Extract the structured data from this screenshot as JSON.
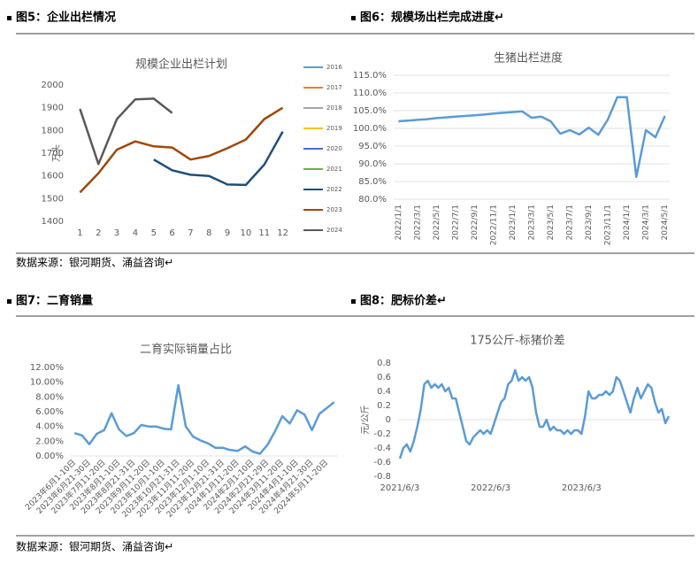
{
  "sources": [
    "数据来源：银河期货、涌益咨询↵",
    "数据来源：银河期货、涌益咨询↵"
  ],
  "chart_data": [
    {
      "type": "line",
      "caption": "图5：企业出栏情况",
      "title": "规模企业出栏计划",
      "ylabel": "万头",
      "categories": [
        "1",
        "2",
        "3",
        "4",
        "5",
        "6",
        "7",
        "8",
        "9",
        "10",
        "11",
        "12"
      ],
      "ylim": [
        1400,
        2000
      ],
      "yticks": [
        1400,
        1500,
        1600,
        1700,
        1800,
        1900,
        2000
      ],
      "grid": false,
      "legend": "right",
      "series": [
        {
          "name": "2016",
          "color": "#5b9bd5",
          "values": [
            null,
            null,
            null,
            null,
            null,
            null,
            null,
            null,
            null,
            null,
            null,
            null
          ]
        },
        {
          "name": "2017",
          "color": "#ed7d31",
          "values": [
            null,
            null,
            null,
            null,
            null,
            null,
            null,
            null,
            null,
            null,
            null,
            null
          ]
        },
        {
          "name": "2018",
          "color": "#a5a5a5",
          "values": [
            null,
            null,
            null,
            null,
            null,
            null,
            null,
            null,
            null,
            null,
            null,
            null
          ]
        },
        {
          "name": "2019",
          "color": "#ffc000",
          "values": [
            null,
            null,
            null,
            null,
            null,
            null,
            null,
            null,
            null,
            null,
            null,
            null
          ]
        },
        {
          "name": "2020",
          "color": "#4472c4",
          "values": [
            null,
            null,
            null,
            null,
            null,
            null,
            null,
            null,
            null,
            null,
            null,
            null
          ]
        },
        {
          "name": "2021",
          "color": "#70ad47",
          "values": [
            null,
            null,
            null,
            null,
            null,
            null,
            null,
            null,
            null,
            null,
            null,
            null
          ]
        },
        {
          "name": "2022",
          "color": "#1f4e79",
          "values": [
            null,
            null,
            null,
            null,
            1672,
            1625,
            1605,
            1600,
            1562,
            1560,
            1650,
            1795
          ]
        },
        {
          "name": "2023",
          "color": "#9e480e",
          "values": [
            1527,
            1612,
            1715,
            1752,
            1730,
            1725,
            1672,
            1688,
            1722,
            1760,
            1850,
            1900
          ]
        },
        {
          "name": "2024",
          "color": "#595959",
          "values": [
            1895,
            1652,
            1850,
            1937,
            1940,
            1877,
            null,
            null,
            null,
            null,
            null,
            null
          ]
        }
      ]
    },
    {
      "type": "line",
      "caption": "图6：规模场出栏完成进度↵",
      "title": "生猪出栏进度",
      "categories": [
        "2022/1/1",
        null,
        "2022/3/1",
        null,
        "2022/5/1",
        null,
        "2022/7/1",
        null,
        "2022/9/1",
        null,
        "2022/11/1",
        null,
        "2023/1/1",
        null,
        "2023/3/1",
        null,
        "2023/5/1",
        null,
        "2023/7/1",
        null,
        "2023/9/1",
        null,
        "2023/11/1",
        null,
        "2024/1/1",
        null,
        "2024/3/1",
        null,
        "2024/5/1"
      ],
      "ylim": [
        80,
        115
      ],
      "yticks": [
        {
          "value": 80,
          "label": "80.0%"
        },
        {
          "value": 85,
          "label": "85.0%"
        },
        {
          "value": 90,
          "label": "90.0%"
        },
        {
          "value": 95,
          "label": "95.0%"
        },
        {
          "value": 100,
          "label": "100.0%"
        },
        {
          "value": 105,
          "label": "105.0%"
        },
        {
          "value": 110,
          "label": "110.0%"
        },
        {
          "value": 115,
          "label": "115.0%"
        }
      ],
      "grid": true,
      "xrotate": -90,
      "series": [
        {
          "name": null,
          "color": "#5b9bd5",
          "values": [
            102.0,
            102.2,
            102.4,
            102.6,
            102.9,
            103.1,
            103.3,
            103.5,
            103.7,
            103.9,
            104.2,
            104.4,
            104.6,
            104.8,
            103.0,
            103.3,
            102.0,
            98.5,
            99.5,
            98.3,
            100.2,
            98.2,
            102.5,
            108.8,
            108.8,
            86.3,
            99.5,
            97.5,
            103.5
          ]
        }
      ]
    },
    {
      "type": "line",
      "caption": "图7：二育销量",
      "title": "二育实际销量占比",
      "categories": [
        "2023年6月1-10日",
        null,
        "2023年6月21-30日",
        null,
        "2023年7月11-20日",
        null,
        "2023年8月1-10日",
        null,
        "2023年8月21-31日",
        null,
        "2023年9月11-20日",
        null,
        "2023年10月1-10日",
        null,
        "2023年10月21-31日",
        null,
        "2023年11月11-20日",
        null,
        "2023年12月1-10日",
        null,
        "2023年12月21-31日",
        null,
        "2024年1月11-20日",
        null,
        "2024年2月1-10日",
        null,
        "2024年2月21-29日",
        null,
        "2024年3月11-20日",
        null,
        "2024年4月1-10日",
        null,
        "2024年4月21-30日",
        null,
        "2024年5月11-20日",
        null
      ],
      "ylim": [
        0,
        12
      ],
      "yticks": [
        {
          "value": 0,
          "label": "0.00%"
        },
        {
          "value": 2,
          "label": "2.00%"
        },
        {
          "value": 4,
          "label": "4.00%"
        },
        {
          "value": 6,
          "label": "6.00%"
        },
        {
          "value": 8,
          "label": "8.00%"
        },
        {
          "value": 10,
          "label": "10.00%"
        },
        {
          "value": 12,
          "label": "12.00%"
        }
      ],
      "grid": false,
      "xrotate": -45,
      "series": [
        {
          "name": null,
          "color": "#5b9bd5",
          "values": [
            3.1,
            2.8,
            1.6,
            3.0,
            3.5,
            5.8,
            3.6,
            2.7,
            3.1,
            4.2,
            4.0,
            4.0,
            3.7,
            3.6,
            9.6,
            4.0,
            2.6,
            2.1,
            1.7,
            1.1,
            1.1,
            0.8,
            0.7,
            1.3,
            0.6,
            0.3,
            1.5,
            3.3,
            5.4,
            4.4,
            6.2,
            5.6,
            3.5,
            5.7,
            6.5,
            7.3
          ]
        }
      ]
    },
    {
      "type": "line",
      "caption": "图8：肥标价差↵",
      "title": "175公斤-标猪价差",
      "ylabel": "元/公斤",
      "categories": [
        "2021/6/3",
        null,
        null,
        null,
        null,
        null,
        null,
        null,
        null,
        null,
        null,
        null,
        null,
        null,
        null,
        null,
        null,
        null,
        null,
        null,
        null,
        null,
        null,
        null,
        null,
        null,
        "2022/6/3",
        null,
        null,
        null,
        null,
        null,
        null,
        null,
        null,
        null,
        null,
        null,
        null,
        null,
        null,
        null,
        null,
        null,
        null,
        null,
        null,
        null,
        null,
        null,
        null,
        null,
        "2023/6/3",
        null,
        null,
        null,
        null,
        null,
        null,
        null,
        null,
        null,
        null,
        null,
        null,
        null,
        null,
        null,
        null,
        null,
        null,
        null,
        null,
        null,
        null,
        null,
        null,
        null
      ],
      "ylim": [
        -0.8,
        0.8
      ],
      "yticks": [
        -0.8,
        -0.6,
        -0.4,
        -0.2,
        0,
        0.2,
        0.4,
        0.6,
        0.8
      ],
      "grid": false,
      "series": [
        {
          "name": null,
          "color": "#5b9bd5",
          "values": [
            -0.55,
            -0.4,
            -0.35,
            -0.45,
            -0.3,
            -0.1,
            0.15,
            0.5,
            0.55,
            0.45,
            0.5,
            0.45,
            0.5,
            0.4,
            0.45,
            0.3,
            0.3,
            0.1,
            -0.1,
            -0.3,
            -0.35,
            -0.25,
            -0.2,
            -0.15,
            -0.2,
            -0.15,
            -0.2,
            -0.05,
            0.1,
            0.25,
            0.3,
            0.5,
            0.55,
            0.7,
            0.55,
            0.6,
            0.55,
            0.6,
            0.45,
            0.1,
            -0.1,
            -0.1,
            0.0,
            -0.15,
            -0.1,
            -0.15,
            -0.15,
            -0.2,
            -0.15,
            -0.2,
            -0.15,
            -0.15,
            -0.2,
            0.05,
            0.4,
            0.3,
            0.3,
            0.35,
            0.35,
            0.4,
            0.35,
            0.4,
            0.6,
            0.55,
            0.4,
            0.25,
            0.1,
            0.3,
            0.45,
            0.3,
            0.4,
            0.5,
            0.45,
            0.25,
            0.1,
            0.15,
            -0.05,
            0.05
          ]
        }
      ]
    }
  ]
}
